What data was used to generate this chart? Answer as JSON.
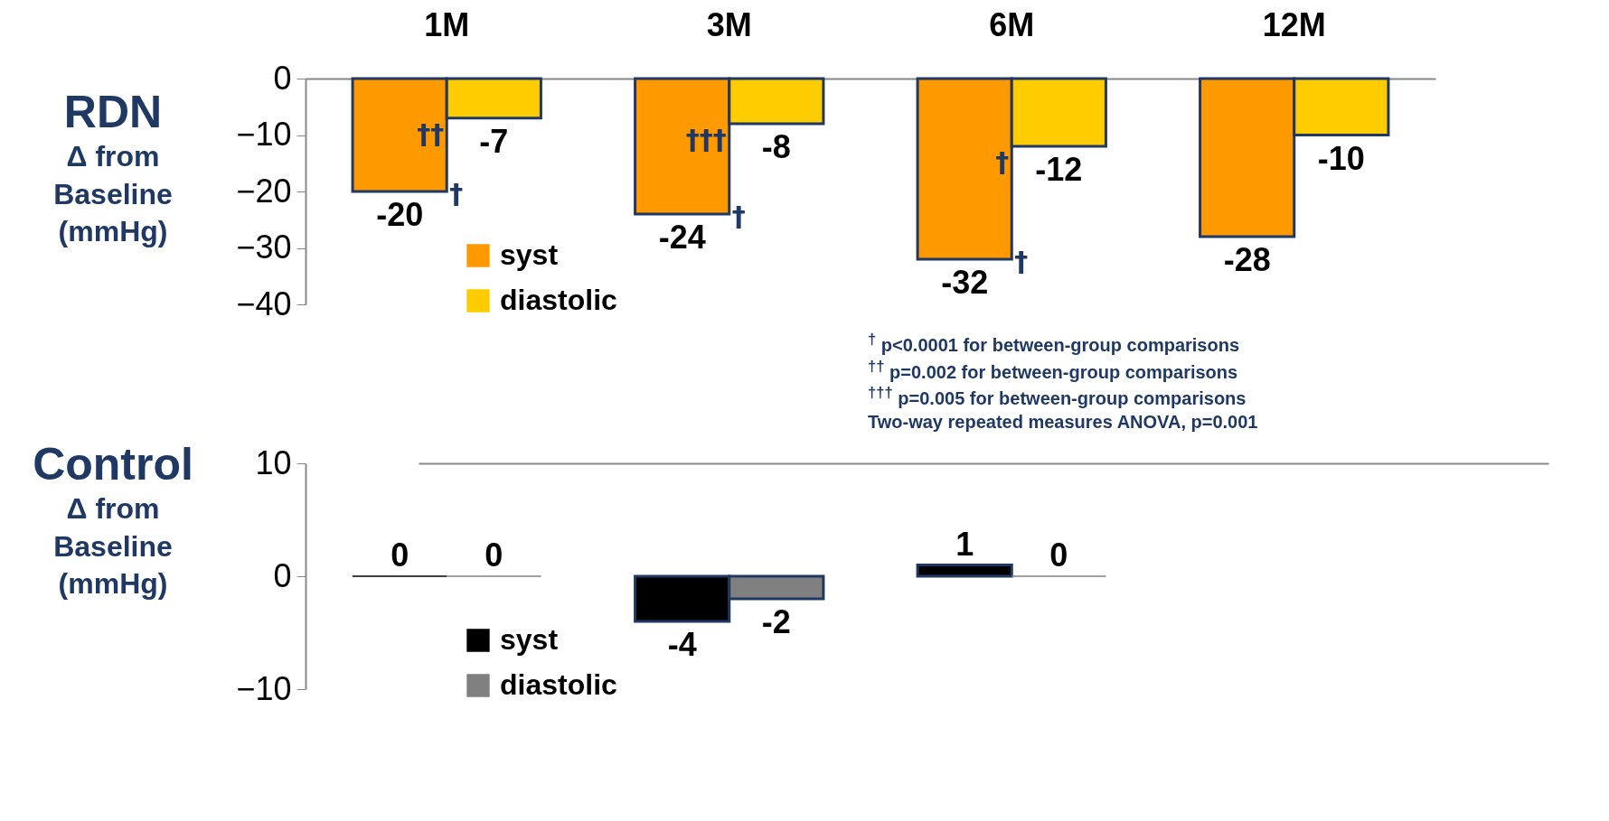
{
  "chart_data": [
    {
      "type": "bar",
      "title": "RDN",
      "ylabel": "Δ from Baseline (mmHg)",
      "categories": [
        "1M",
        "3M",
        "6M",
        "12M"
      ],
      "series": [
        {
          "name": "syst",
          "color": "#ff9900",
          "values": [
            -20,
            -24,
            -32,
            -28
          ]
        },
        {
          "name": "diastolic",
          "color": "#ffcc00",
          "values": [
            -7,
            -8,
            -12,
            -10
          ]
        }
      ],
      "ylim": [
        -40,
        0
      ],
      "yticks": [
        -40,
        -30,
        -20,
        -10,
        0
      ],
      "data_labels": true,
      "legend": "bottom left",
      "grid": false,
      "annotations": [
        {
          "text": "†",
          "x": "1M",
          "y": -20
        },
        {
          "text": "††",
          "x": "1M",
          "y": -7
        },
        {
          "text": "†",
          "x": "3M",
          "y": -24
        },
        {
          "text": "†††",
          "x": "3M",
          "y": -8
        },
        {
          "text": "†",
          "x": "6M",
          "y": -32
        },
        {
          "text": "†",
          "x": "6M",
          "y": -12
        },
        "$^{†}$ p<0.0001 for between-group comparisons",
        "$^{††}$ p=0.002 for between-group comparisons",
        "$^{†††}$ p=0.005 for between-group comparisons",
        "Two-way repeated measures ANOVA, p=0.001"
      ]
    },
    {
      "type": "bar",
      "title": "Control",
      "ylabel": "Δ from Baseline (mmHg)",
      "categories": [
        null,
        null,
        null,
        null
      ],
      "series": [
        {
          "name": "syst",
          "color": "#000000",
          "values": [
            0,
            -4,
            1,
            null
          ]
        },
        {
          "name": "diastolic",
          "color": "#808080",
          "values": [
            0,
            -2,
            0,
            null
          ]
        }
      ],
      "ylim": [
        -10,
        10
      ],
      "yticks": [
        -10,
        0,
        10
      ],
      "data_labels": true,
      "legend": "bottom left",
      "grid": false,
      "tick_labels": "y"
    }
  ]
}
